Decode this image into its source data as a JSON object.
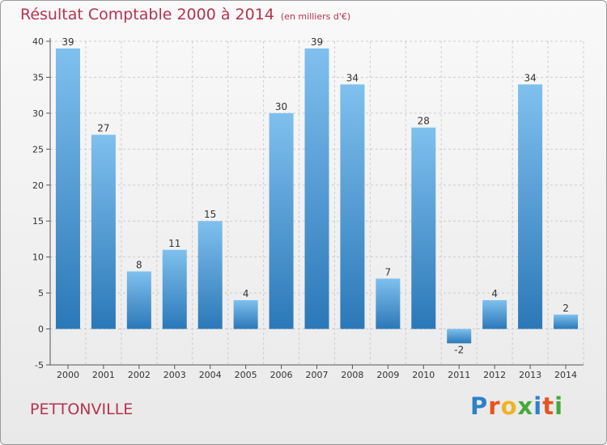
{
  "header": {
    "title": "Résultat Comptable 2000 à 2014",
    "subtitle": "(en milliers d'€)"
  },
  "footer": {
    "commune": "PETTONVILLE",
    "logo": {
      "letters": [
        "P",
        "r",
        "o",
        "x",
        "i",
        "t",
        "i"
      ],
      "colors": [
        "#2c82c9",
        "#e6551f",
        "#f0b323",
        "#45a93a",
        "#2c82c9",
        "#e6551f",
        "#45a93a"
      ]
    }
  },
  "chart_data": {
    "type": "bar",
    "title": "Résultat Comptable 2000 à 2014",
    "subtitle": "(en milliers d'€)",
    "categories": [
      "2000",
      "2001",
      "2002",
      "2003",
      "2004",
      "2005",
      "2006",
      "2007",
      "2008",
      "2009",
      "2010",
      "2011",
      "2012",
      "2013",
      "2014"
    ],
    "values": [
      39,
      27,
      8,
      11,
      15,
      4,
      30,
      39,
      34,
      7,
      28,
      -2,
      4,
      34,
      2
    ],
    "ylim": [
      -5,
      40
    ],
    "yticks": [
      -5,
      0,
      5,
      10,
      15,
      20,
      25,
      30,
      35,
      40
    ],
    "grid": true,
    "data_labels": true,
    "colors": {
      "bar_light": "#7fc0ee",
      "bar_dark": "#2b78b8",
      "grid": "#cccccc",
      "axis": "#555555"
    }
  }
}
